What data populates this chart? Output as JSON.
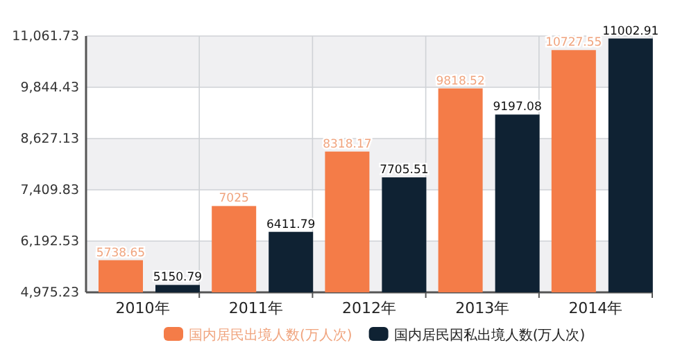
{
  "chart_data": {
    "type": "bar",
    "categories": [
      "2010年",
      "2011年",
      "2012年",
      "2013年",
      "2014年"
    ],
    "series": [
      {
        "name": "国内居民出境人数(万人次)",
        "color": "#f47c48",
        "values": [
          5738.65,
          7025,
          8318.17,
          9818.52,
          10727.55
        ]
      },
      {
        "name": "国内居民因私出境人数(万人次)",
        "color": "#0f2233",
        "values": [
          5150.79,
          6411.79,
          7705.51,
          9197.08,
          11002.91
        ]
      }
    ],
    "ylim": [
      4975.23,
      11061.73
    ],
    "yticks": [
      {
        "value": 4975.23,
        "label": "4,975.23"
      },
      {
        "value": 6192.53,
        "label": "6,192.53"
      },
      {
        "value": 7409.83,
        "label": "7,409.83"
      },
      {
        "value": 8627.13,
        "label": "8,627.13"
      },
      {
        "value": 9844.43,
        "label": "9,844.43"
      },
      {
        "value": 11061.73,
        "label": "11,061.73"
      }
    ],
    "grid": true,
    "legend": "bottom",
    "data_labels": true
  }
}
